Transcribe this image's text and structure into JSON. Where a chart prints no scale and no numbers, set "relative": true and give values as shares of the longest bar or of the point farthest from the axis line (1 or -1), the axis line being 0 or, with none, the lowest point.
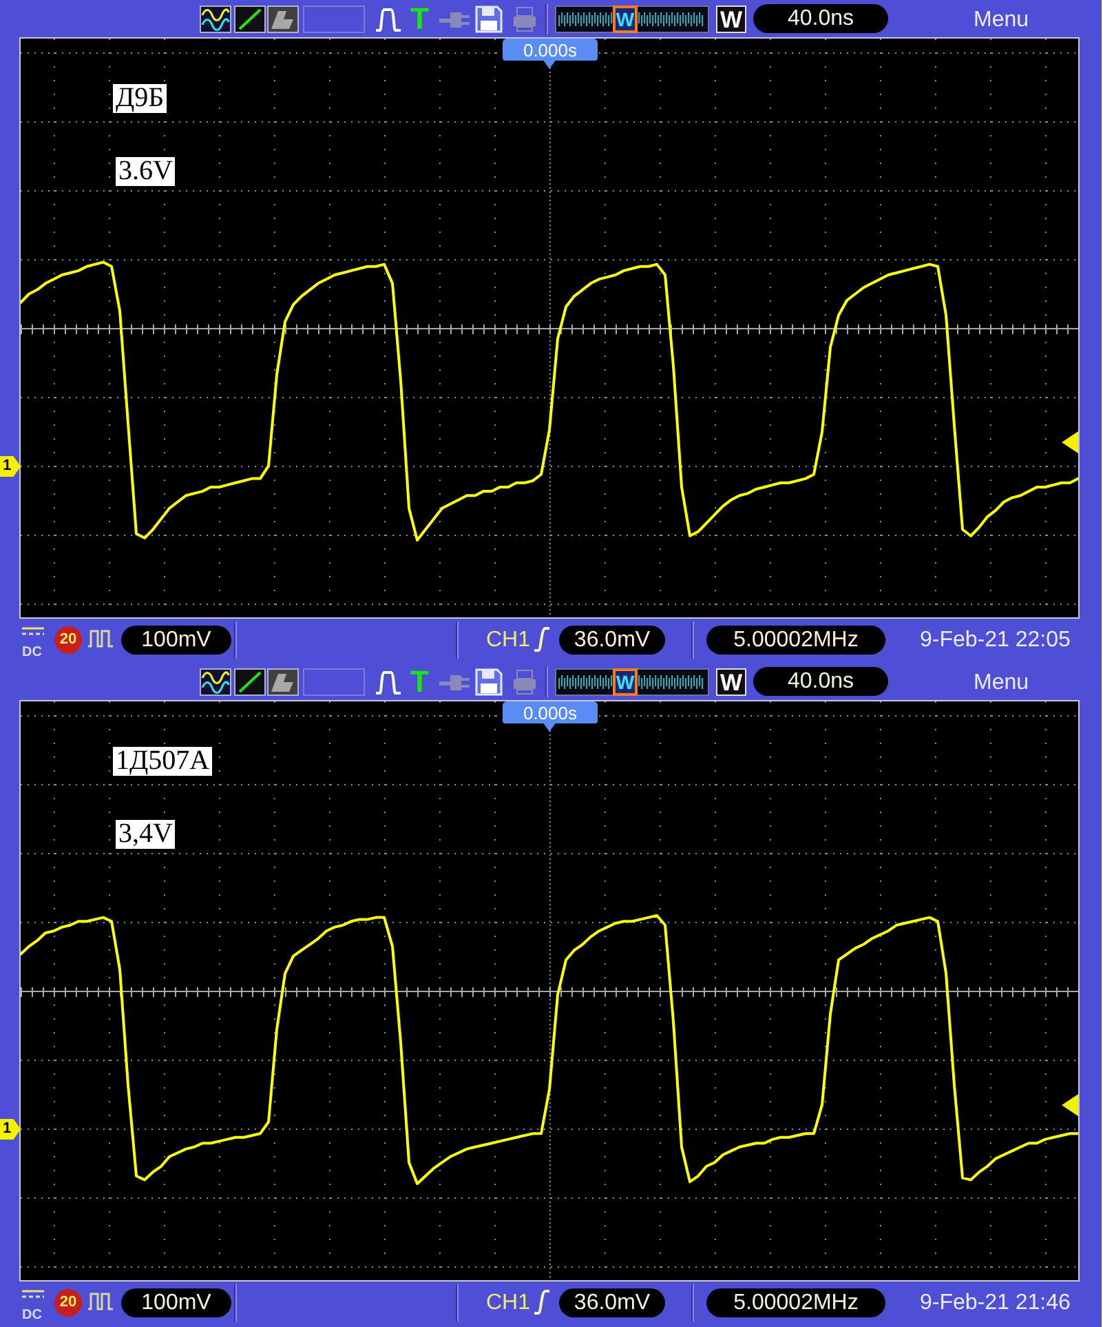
{
  "chart_data": [
    {
      "type": "line",
      "relative": true,
      "grid": true,
      "annotations": [
        "T",
        "W",
        "W",
        "40.0ns",
        "Menu",
        "0.000s",
        "Д9Б",
        "3.6V",
        "1",
        "DC",
        "20",
        "100mV",
        "CH1",
        "36.0mV",
        "5.00002MHz",
        "9-Feb-21 22:05"
      ],
      "categories": [
        null,
        null,
        null,
        null,
        null,
        null,
        null,
        null,
        null,
        null,
        null,
        null,
        null,
        null,
        null,
        null,
        null,
        null,
        null,
        null,
        null,
        null,
        null,
        null,
        null,
        null,
        null,
        null,
        null,
        null,
        null,
        null,
        null,
        null,
        null,
        null,
        null,
        null,
        null,
        null,
        null,
        null,
        null,
        null,
        null,
        null,
        null,
        null,
        null,
        null,
        null,
        null,
        null,
        null,
        null,
        null,
        null,
        null,
        null,
        null,
        null,
        null,
        null,
        null,
        null,
        null,
        null,
        null,
        null,
        null,
        null,
        null,
        null,
        null,
        null,
        null,
        null,
        null,
        null,
        null,
        null,
        null,
        null,
        null,
        null,
        null,
        null,
        null,
        null,
        null,
        null,
        null,
        null,
        null,
        null,
        null,
        null,
        null,
        null,
        null,
        null,
        null,
        null,
        null,
        null,
        null,
        null,
        null,
        null,
        null,
        null,
        null,
        null,
        null,
        null,
        null,
        null,
        null,
        null,
        null,
        null,
        null,
        null,
        null,
        null,
        null,
        null,
        null,
        null
      ],
      "series": [
        {
          "color": "#ffff00",
          "values": [
            0.12,
            0.16,
            0.18,
            0.21,
            0.23,
            0.25,
            0.26,
            0.27,
            0.29,
            0.3,
            0.31,
            0.29,
            0.08,
            -0.45,
            -0.97,
            -0.99,
            -0.95,
            -0.9,
            -0.85,
            -0.82,
            -0.79,
            -0.78,
            -0.77,
            -0.75,
            -0.75,
            -0.74,
            -0.73,
            -0.72,
            -0.71,
            -0.71,
            -0.65,
            -0.22,
            0.03,
            0.11,
            0.15,
            0.18,
            0.21,
            0.23,
            0.25,
            0.26,
            0.27,
            0.28,
            0.29,
            0.29,
            0.3,
            0.21,
            -0.25,
            -0.85,
            -1,
            -0.95,
            -0.9,
            -0.85,
            -0.83,
            -0.81,
            -0.79,
            -0.79,
            -0.77,
            -0.77,
            -0.75,
            -0.75,
            -0.73,
            -0.73,
            -0.72,
            -0.69,
            -0.48,
            -0.05,
            0.1,
            0.15,
            0.18,
            0.21,
            0.23,
            0.24,
            0.25,
            0.27,
            0.28,
            0.29,
            0.29,
            0.3,
            0.25,
            -0.18,
            -0.75,
            -0.98,
            -0.96,
            -0.92,
            -0.88,
            -0.84,
            -0.81,
            -0.79,
            -0.78,
            -0.76,
            -0.75,
            -0.74,
            -0.73,
            -0.73,
            -0.72,
            -0.71,
            -0.69,
            -0.49,
            -0.09,
            0.06,
            0.13,
            0.16,
            0.19,
            0.21,
            0.23,
            0.25,
            0.26,
            0.27,
            0.28,
            0.29,
            0.3,
            0.29,
            0.06,
            -0.46,
            -0.95,
            -0.98,
            -0.94,
            -0.89,
            -0.86,
            -0.82,
            -0.8,
            -0.79,
            -0.77,
            -0.75,
            -0.75,
            -0.74,
            -0.73,
            -0.73,
            -0.71
          ]
        }
      ]
    },
    {
      "type": "line",
      "relative": true,
      "grid": true,
      "annotations": [
        "T",
        "W",
        "W",
        "40.0ns",
        "Menu",
        "0.000s",
        "1Д507А",
        "3,4V",
        "1",
        "DC",
        "20",
        "100mV",
        "CH1",
        "36.0mV",
        "5.00002MHz",
        "9-Feb-21 21:46"
      ],
      "categories": [
        null,
        null,
        null,
        null,
        null,
        null,
        null,
        null,
        null,
        null,
        null,
        null,
        null,
        null,
        null,
        null,
        null,
        null,
        null,
        null,
        null,
        null,
        null,
        null,
        null,
        null,
        null,
        null,
        null,
        null,
        null,
        null,
        null,
        null,
        null,
        null,
        null,
        null,
        null,
        null,
        null,
        null,
        null,
        null,
        null,
        null,
        null,
        null,
        null,
        null,
        null,
        null,
        null,
        null,
        null,
        null,
        null,
        null,
        null,
        null,
        null,
        null,
        null,
        null,
        null,
        null,
        null,
        null,
        null,
        null,
        null,
        null,
        null,
        null,
        null,
        null,
        null,
        null,
        null,
        null,
        null,
        null,
        null,
        null,
        null,
        null,
        null,
        null,
        null,
        null,
        null,
        null,
        null,
        null,
        null,
        null,
        null,
        null,
        null,
        null,
        null,
        null,
        null,
        null,
        null,
        null,
        null,
        null,
        null,
        null,
        null,
        null,
        null,
        null,
        null,
        null,
        null,
        null,
        null,
        null,
        null,
        null,
        null,
        null,
        null,
        null,
        null,
        null,
        null
      ],
      "series": [
        {
          "color": "#ffff00",
          "values": [
            0.19,
            0.23,
            0.26,
            0.3,
            0.31,
            0.33,
            0.34,
            0.36,
            0.36,
            0.37,
            0.38,
            0.36,
            0.11,
            -0.49,
            -0.96,
            -0.98,
            -0.94,
            -0.91,
            -0.86,
            -0.84,
            -0.82,
            -0.81,
            -0.79,
            -0.79,
            -0.78,
            -0.77,
            -0.76,
            -0.76,
            -0.75,
            -0.74,
            -0.68,
            -0.2,
            0.09,
            0.18,
            0.21,
            0.24,
            0.27,
            0.31,
            0.33,
            0.34,
            0.36,
            0.37,
            0.37,
            0.38,
            0.38,
            0.23,
            -0.27,
            -0.89,
            -1,
            -0.96,
            -0.92,
            -0.89,
            -0.86,
            -0.84,
            -0.82,
            -0.81,
            -0.8,
            -0.79,
            -0.78,
            -0.77,
            -0.76,
            -0.75,
            -0.74,
            -0.74,
            -0.51,
            -0.02,
            0.16,
            0.21,
            0.24,
            0.28,
            0.31,
            0.33,
            0.35,
            0.36,
            0.36,
            0.37,
            0.38,
            0.39,
            0.34,
            -0.16,
            -0.81,
            -0.99,
            -0.96,
            -0.91,
            -0.89,
            -0.85,
            -0.83,
            -0.81,
            -0.8,
            -0.79,
            -0.79,
            -0.77,
            -0.76,
            -0.76,
            -0.75,
            -0.74,
            -0.74,
            -0.59,
            -0.12,
            0.16,
            0.19,
            0.22,
            0.24,
            0.27,
            0.29,
            0.31,
            0.34,
            0.35,
            0.36,
            0.37,
            0.38,
            0.36,
            0.09,
            -0.49,
            -0.97,
            -0.98,
            -0.94,
            -0.91,
            -0.87,
            -0.85,
            -0.83,
            -0.81,
            -0.79,
            -0.79,
            -0.77,
            -0.76,
            -0.75,
            -0.74,
            -0.74
          ]
        }
      ]
    }
  ]
}
